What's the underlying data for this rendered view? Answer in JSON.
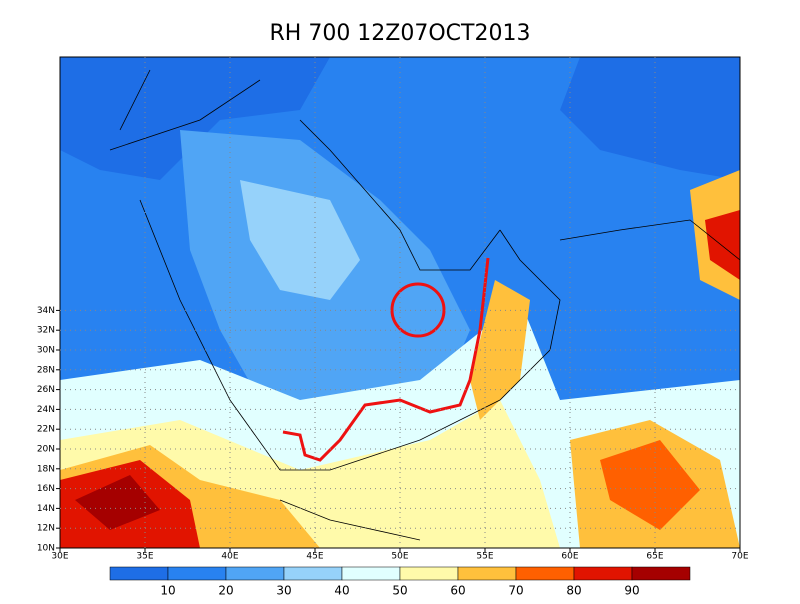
{
  "title": "RH 700 12Z07OCT2013",
  "lat_labels": [
    "10N",
    "12N",
    "14N",
    "16N",
    "18N",
    "20N",
    "22N",
    "24N",
    "26N",
    "28N",
    "30N",
    "32N",
    "34N"
  ],
  "lon_labels": [
    "30E",
    "35E",
    "40E",
    "45E",
    "50E",
    "55E",
    "60E",
    "65E",
    "70E"
  ],
  "colorbar": {
    "colors": [
      "#1e6ee6",
      "#2882f0",
      "#50a5f5",
      "#96d2fa",
      "#e1ffff",
      "#fffaaa",
      "#ffc03c",
      "#ff6000",
      "#e11400",
      "#a50000"
    ],
    "labels": [
      10,
      20,
      30,
      40,
      50,
      60,
      70,
      80,
      90
    ]
  }
}
